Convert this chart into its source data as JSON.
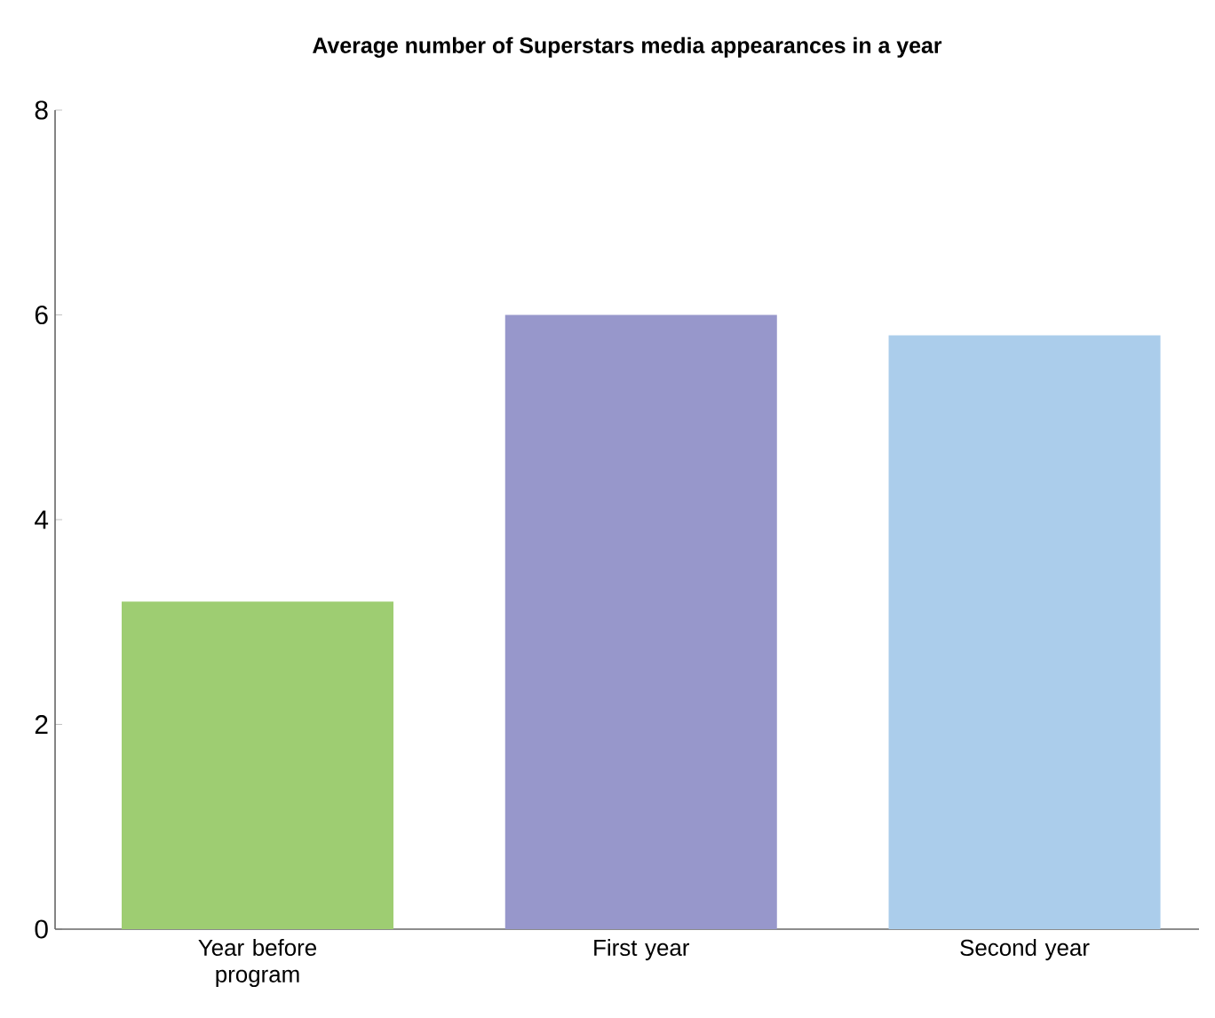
{
  "chart_data": {
    "type": "bar",
    "title": "Average number of Superstars media appearances in a year",
    "categories": [
      "Year before program",
      "First year",
      "Second year"
    ],
    "values": [
      3.2,
      6.0,
      5.8
    ],
    "colors": [
      "#9ecd72",
      "#9797cb",
      "#abcdeb"
    ],
    "ylim": [
      0,
      8
    ],
    "yticks": [
      0,
      2,
      4,
      6,
      8
    ],
    "grid": false
  }
}
